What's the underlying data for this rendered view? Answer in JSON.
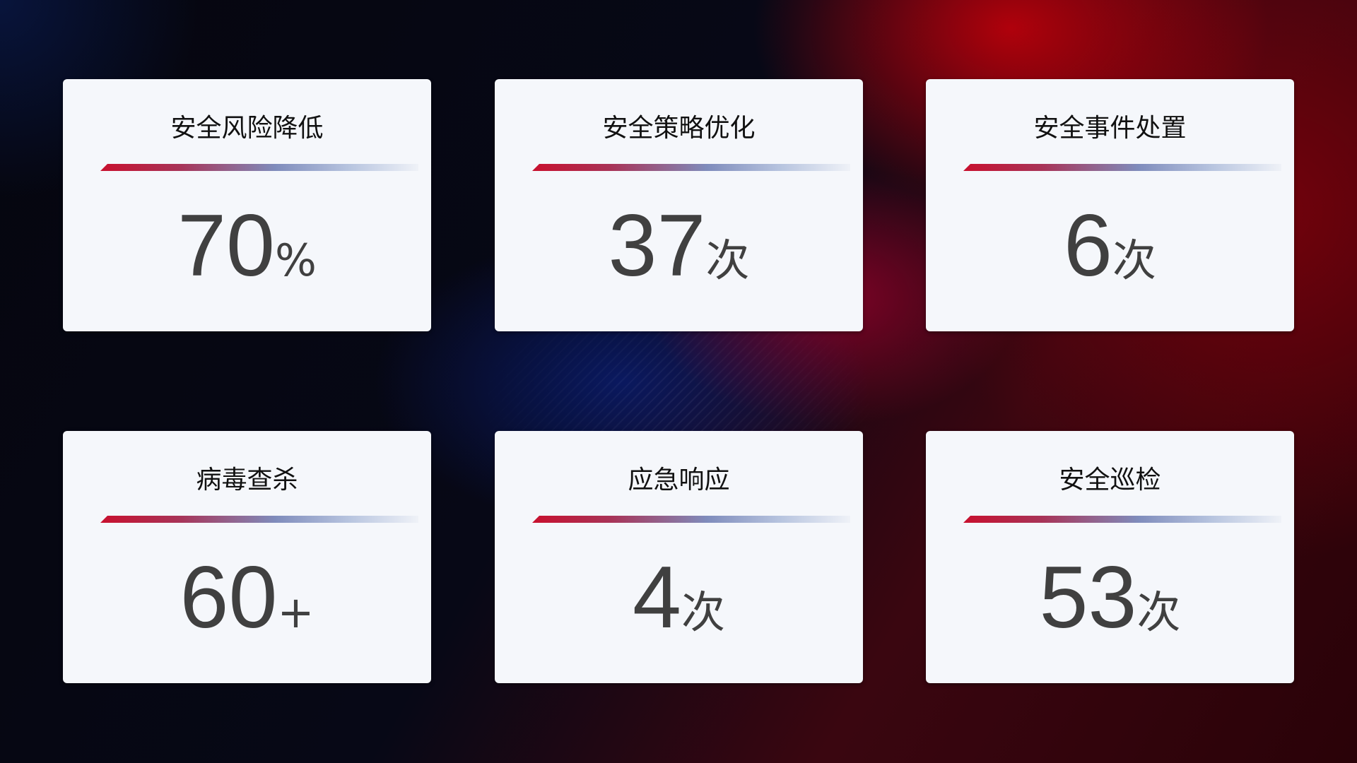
{
  "colors": {
    "bar_start": "#c8102e",
    "bar_end": "#b7c4df",
    "card": "#f5f7fb",
    "number": "#404040"
  },
  "cards": [
    {
      "title": "安全风险降低",
      "value": "70",
      "unit": "%"
    },
    {
      "title": "安全策略优化",
      "value": "37",
      "unit": "次"
    },
    {
      "title": "安全事件处置",
      "value": "6",
      "unit": "次"
    },
    {
      "title": "病毒查杀",
      "value": "60",
      "unit": "+"
    },
    {
      "title": "应急响应",
      "value": "4",
      "unit": "次"
    },
    {
      "title": "安全巡检",
      "value": "53",
      "unit": "次"
    }
  ]
}
